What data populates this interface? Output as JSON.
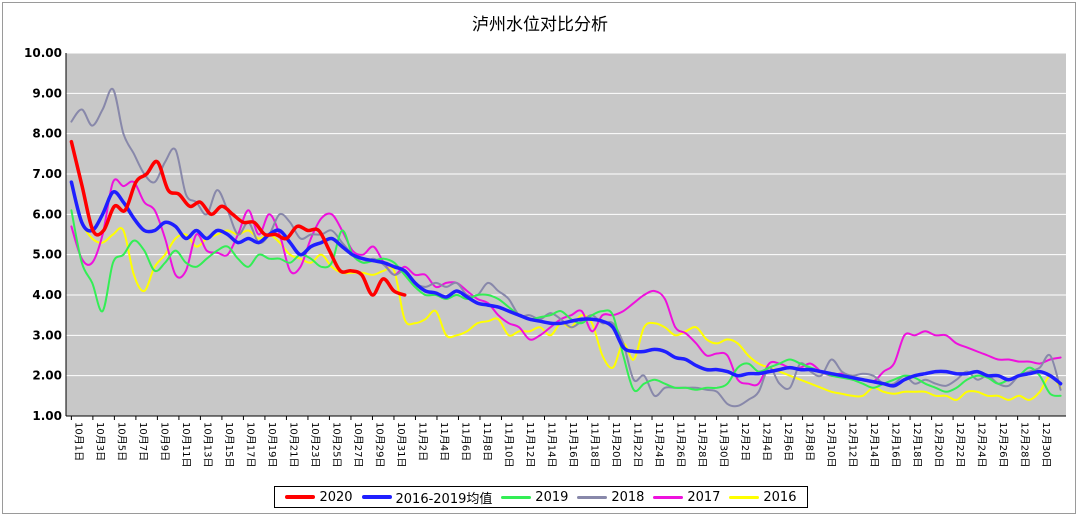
{
  "chart_data": {
    "type": "line",
    "title": "泸州水位对比分析",
    "ylim": [
      1.0,
      10.0
    ],
    "y_ticks": [
      "1.00",
      "2.00",
      "3.00",
      "4.00",
      "5.00",
      "6.00",
      "7.00",
      "8.00",
      "9.00",
      "10.00"
    ],
    "x_tick_labels": [
      "10月1日",
      "10月3日",
      "10月5日",
      "10月7日",
      "10月9日",
      "10月11日",
      "10月13日",
      "10月15日",
      "10月17日",
      "10月19日",
      "10月21日",
      "10月23日",
      "10月25日",
      "10月27日",
      "10月29日",
      "10月31日",
      "11月2日",
      "11月4日",
      "11月6日",
      "11月8日",
      "11月10日",
      "11月12日",
      "11月14日",
      "11月16日",
      "11月18日",
      "11月20日",
      "11月22日",
      "11月24日",
      "11月26日",
      "11月28日",
      "11月30日",
      "12月2日",
      "12月4日",
      "12月6日",
      "12月8日",
      "12月10日",
      "12月12日",
      "12月14日",
      "12月16日",
      "12月18日",
      "12月20日",
      "12月22日",
      "12月24日",
      "12月26日",
      "12月28日",
      "12月30日"
    ],
    "grid": true,
    "legend_position": "bottom",
    "series": [
      {
        "name": "2020",
        "color": "#ff0000",
        "width": 3.5,
        "start": 0,
        "values": [
          7.8,
          6.7,
          5.6,
          5.6,
          6.2,
          6.1,
          6.8,
          7.0,
          7.3,
          6.6,
          6.5,
          6.2,
          6.3,
          6.0,
          6.2,
          6.0,
          5.8,
          5.8,
          5.5,
          5.5,
          5.4,
          5.7,
          5.6,
          5.6,
          5.1,
          4.6,
          4.6,
          4.5,
          4.0,
          4.4,
          4.1,
          4.0
        ]
      },
      {
        "name": "2016-2019均值",
        "color": "#1f1fff",
        "width": 3.5,
        "start": 0,
        "values": [
          6.8,
          5.8,
          5.6,
          6.0,
          6.55,
          6.3,
          5.9,
          5.6,
          5.6,
          5.8,
          5.7,
          5.4,
          5.6,
          5.4,
          5.6,
          5.5,
          5.3,
          5.4,
          5.3,
          5.5,
          5.6,
          5.3,
          5.0,
          5.2,
          5.3,
          5.4,
          5.2,
          5.0,
          4.9,
          4.85,
          4.8,
          4.7,
          4.6,
          4.3,
          4.1,
          4.05,
          3.95,
          4.1,
          3.95,
          3.8,
          3.75,
          3.7,
          3.6,
          3.5,
          3.4,
          3.35,
          3.3,
          3.3,
          3.35,
          3.4,
          3.4,
          3.35,
          3.2,
          2.7,
          2.6,
          2.6,
          2.65,
          2.6,
          2.45,
          2.4,
          2.25,
          2.15,
          2.15,
          2.1,
          2.0,
          2.05,
          2.05,
          2.1,
          2.15,
          2.2,
          2.15,
          2.15,
          2.1,
          2.05,
          2.0,
          1.95,
          1.9,
          1.85,
          1.8,
          1.75,
          1.9,
          2.0,
          2.05,
          2.1,
          2.1,
          2.05,
          2.05,
          2.1,
          2.0,
          2.0,
          1.9,
          2.0,
          2.05,
          2.1,
          2.0,
          1.8
        ]
      },
      {
        "name": "2019",
        "color": "#33ee55",
        "width": 2,
        "start": 0,
        "values": [
          6.1,
          4.8,
          4.3,
          3.6,
          4.8,
          5.0,
          5.35,
          5.1,
          4.6,
          4.8,
          5.1,
          4.8,
          4.7,
          4.9,
          5.1,
          5.2,
          4.9,
          4.7,
          5.0,
          4.9,
          4.9,
          4.8,
          5.0,
          4.9,
          4.7,
          4.8,
          5.6,
          5.0,
          4.8,
          4.85,
          4.9,
          4.8,
          4.5,
          4.2,
          4.0,
          4.0,
          3.9,
          4.0,
          3.9,
          4.0,
          4.0,
          3.9,
          3.7,
          3.5,
          3.4,
          3.45,
          3.5,
          3.6,
          3.4,
          3.3,
          3.5,
          3.6,
          3.5,
          2.5,
          1.65,
          1.8,
          1.9,
          1.8,
          1.7,
          1.7,
          1.65,
          1.7,
          1.7,
          1.8,
          2.2,
          2.3,
          2.1,
          2.2,
          2.3,
          2.4,
          2.3,
          2.2,
          2.1,
          2.0,
          1.95,
          1.9,
          1.8,
          1.7,
          1.8,
          1.9,
          2.0,
          1.95,
          1.8,
          1.7,
          1.6,
          1.7,
          1.9,
          2.0,
          1.95,
          1.8,
          1.9,
          2.0,
          2.2,
          2.0,
          1.55,
          1.5
        ]
      },
      {
        "name": "2018",
        "color": "#8888aa",
        "width": 2,
        "start": 0,
        "values": [
          8.3,
          8.6,
          8.2,
          8.6,
          9.1,
          8.0,
          7.5,
          7.0,
          6.8,
          7.3,
          7.6,
          6.5,
          6.3,
          6.0,
          6.6,
          6.1,
          5.5,
          5.8,
          5.3,
          5.5,
          6.0,
          5.8,
          5.4,
          5.5,
          5.5,
          5.6,
          5.3,
          5.0,
          4.8,
          4.9,
          4.75,
          4.5,
          4.6,
          4.3,
          4.2,
          4.3,
          4.2,
          4.3,
          4.0,
          4.0,
          4.3,
          4.1,
          3.9,
          3.5,
          3.5,
          3.4,
          3.55,
          3.4,
          3.2,
          3.35,
          3.5,
          3.3,
          3.3,
          2.8,
          1.9,
          2.0,
          1.5,
          1.7,
          1.7,
          1.7,
          1.7,
          1.65,
          1.6,
          1.3,
          1.25,
          1.4,
          1.6,
          2.2,
          1.8,
          1.7,
          2.3,
          2.1,
          2.0,
          2.4,
          2.1,
          2.0,
          2.05,
          2.0,
          1.8,
          1.8,
          2.0,
          1.8,
          1.9,
          1.8,
          1.75,
          1.9,
          2.1,
          1.9,
          2.0,
          1.8,
          1.75,
          2.0,
          2.1,
          2.2,
          2.5,
          1.65
        ]
      },
      {
        "name": "2017",
        "color": "#ee11dd",
        "width": 2,
        "start": 0,
        "values": [
          5.7,
          4.9,
          4.8,
          5.5,
          6.8,
          6.7,
          6.8,
          6.3,
          6.1,
          5.4,
          4.5,
          4.6,
          5.5,
          5.1,
          5.05,
          5.0,
          5.5,
          6.1,
          5.5,
          6.0,
          5.5,
          4.6,
          4.7,
          5.4,
          5.9,
          6.0,
          5.6,
          5.1,
          5.0,
          5.2,
          4.8,
          4.5,
          4.7,
          4.5,
          4.5,
          4.2,
          4.3,
          4.3,
          4.1,
          3.9,
          3.8,
          3.5,
          3.3,
          3.2,
          2.9,
          3.0,
          3.2,
          3.4,
          3.5,
          3.6,
          3.1,
          3.5,
          3.5,
          3.6,
          3.8,
          4.0,
          4.1,
          3.9,
          3.2,
          3.05,
          2.8,
          2.5,
          2.55,
          2.5,
          1.9,
          1.8,
          1.8,
          2.3,
          2.3,
          2.2,
          2.2,
          2.3,
          2.1,
          2.0,
          2.05,
          1.9,
          1.9,
          1.85,
          2.1,
          2.3,
          3.0,
          3.0,
          3.1,
          3.0,
          3.0,
          2.8,
          2.7,
          2.6,
          2.5,
          2.4,
          2.4,
          2.35,
          2.35,
          2.3,
          2.4,
          2.45
        ]
      },
      {
        "name": "2016",
        "color": "#ffff00",
        "width": 2,
        "start": 0,
        "values": [
          6.7,
          5.8,
          5.4,
          5.3,
          5.5,
          5.6,
          4.5,
          4.1,
          4.7,
          5.0,
          5.4,
          5.5,
          5.2,
          5.4,
          5.5,
          5.6,
          5.5,
          5.6,
          5.4,
          5.5,
          5.3,
          5.0,
          4.9,
          4.8,
          5.0,
          4.7,
          4.55,
          4.55,
          4.55,
          4.5,
          4.6,
          4.6,
          3.4,
          3.3,
          3.4,
          3.6,
          3.0,
          3.0,
          3.1,
          3.3,
          3.35,
          3.4,
          3.0,
          3.1,
          3.1,
          3.2,
          3.0,
          3.3,
          3.2,
          3.5,
          3.3,
          2.5,
          2.2,
          2.8,
          2.4,
          3.2,
          3.3,
          3.2,
          3.0,
          3.1,
          3.2,
          2.9,
          2.8,
          2.9,
          2.8,
          2.5,
          2.3,
          2.2,
          2.1,
          2.0,
          1.9,
          1.8,
          1.7,
          1.6,
          1.55,
          1.5,
          1.5,
          1.7,
          1.6,
          1.55,
          1.6,
          1.6,
          1.6,
          1.5,
          1.5,
          1.4,
          1.6,
          1.6,
          1.5,
          1.5,
          1.4,
          1.5,
          1.4,
          1.6,
          2.0,
          1.7
        ]
      }
    ]
  }
}
